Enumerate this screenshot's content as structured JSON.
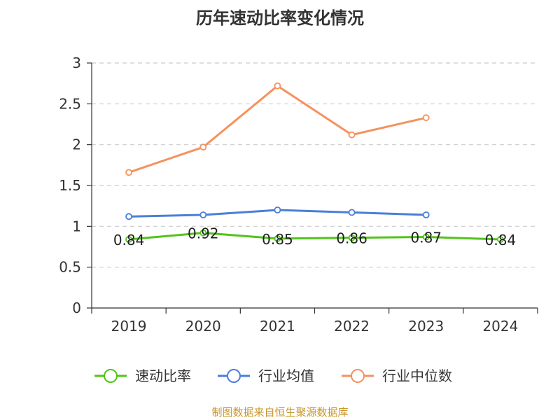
{
  "chart_data": {
    "type": "line",
    "title": "历年速动比率变化情况",
    "categories": [
      "2019",
      "2020",
      "2021",
      "2022",
      "2023",
      "2024"
    ],
    "ylim": [
      0,
      3
    ],
    "yticks": [
      "0",
      "0.5",
      "1",
      "1.5",
      "2",
      "2.5",
      "3"
    ],
    "grid": true,
    "legend_position": "bottom",
    "series": [
      {
        "name": "速动比率",
        "color": "#52c41a",
        "values": [
          0.84,
          0.92,
          0.85,
          0.86,
          0.87,
          0.84
        ],
        "labels": [
          "0.84",
          "0.92",
          "0.85",
          "0.86",
          "0.87",
          "0.84"
        ]
      },
      {
        "name": "行业均值",
        "color": "#4a7fd8",
        "values": [
          1.12,
          1.14,
          1.2,
          1.17,
          1.14,
          null
        ]
      },
      {
        "name": "行业中位数",
        "color": "#f5925e",
        "values": [
          1.66,
          1.97,
          2.72,
          2.12,
          2.33,
          null
        ]
      }
    ]
  },
  "source": "制图数据来自恒生聚源数据库"
}
